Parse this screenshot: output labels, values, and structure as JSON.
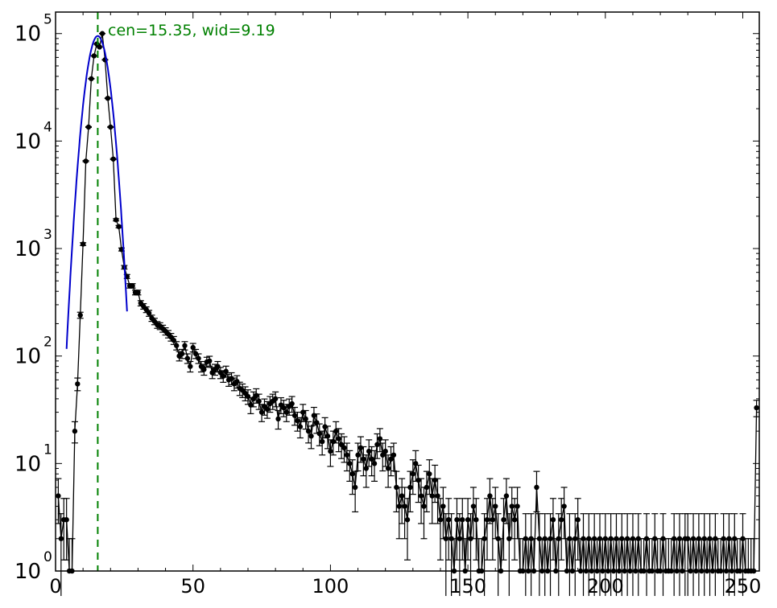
{
  "chart_data": {
    "type": "scatter",
    "title": "",
    "xlabel": "",
    "ylabel": "",
    "xlim": [
      0,
      256
    ],
    "ylim_log10": [
      0,
      5.2
    ],
    "y_scale": "log",
    "grid": false,
    "x_ticks": [
      0,
      50,
      100,
      150,
      200,
      250
    ],
    "x_tick_labels": [
      "0",
      "50",
      "100",
      "150",
      "200",
      "250"
    ],
    "y_ticks": [
      {
        "base": "10",
        "exp": "0",
        "value": 1
      },
      {
        "base": "10",
        "exp": "1",
        "value": 10
      },
      {
        "base": "10",
        "exp": "2",
        "value": 100
      },
      {
        "base": "10",
        "exp": "3",
        "value": 1000
      },
      {
        "base": "10",
        "exp": "4",
        "value": 10000
      },
      {
        "base": "10",
        "exp": "5",
        "value": 100000
      }
    ],
    "annotation": "cen=15.35, wid=9.19",
    "center": 15.35,
    "colors": {
      "data": "#000000",
      "fit": "#0000cc",
      "center_line": "#008000",
      "annotation": "#008000"
    },
    "series": [
      {
        "points": [
          [
            1,
            5
          ],
          [
            2,
            2
          ],
          [
            3,
            3
          ],
          [
            4,
            3
          ],
          [
            5,
            1
          ],
          [
            6,
            1
          ],
          [
            7,
            20
          ],
          [
            8,
            55
          ],
          [
            9,
            240
          ],
          [
            10,
            1100
          ],
          [
            11,
            6500
          ],
          [
            12,
            13500
          ],
          [
            13,
            38000
          ],
          [
            14,
            62000
          ],
          [
            15,
            80000
          ],
          [
            16,
            75000
          ],
          [
            17,
            100000
          ],
          [
            18,
            57000
          ],
          [
            19,
            25000
          ],
          [
            20,
            13500
          ],
          [
            21,
            6800
          ],
          [
            22,
            1850
          ],
          [
            23,
            1600
          ],
          [
            24,
            980
          ],
          [
            25,
            670
          ],
          [
            26,
            550
          ],
          [
            27,
            450
          ],
          [
            28,
            450
          ],
          [
            29,
            390
          ],
          [
            30,
            390
          ],
          [
            31,
            310
          ],
          [
            32,
            290
          ],
          [
            33,
            270
          ],
          [
            34,
            250
          ],
          [
            35,
            225
          ],
          [
            36,
            210
          ],
          [
            37,
            195
          ],
          [
            38,
            190
          ],
          [
            39,
            180
          ],
          [
            40,
            170
          ],
          [
            41,
            160
          ],
          [
            42,
            150
          ],
          [
            43,
            140
          ],
          [
            44,
            125
          ],
          [
            45,
            100
          ],
          [
            46,
            105
          ],
          [
            47,
            125
          ],
          [
            48,
            95
          ],
          [
            49,
            80
          ],
          [
            50,
            120
          ],
          [
            51,
            105
          ],
          [
            52,
            95
          ],
          [
            53,
            80
          ],
          [
            54,
            75
          ],
          [
            55,
            88
          ],
          [
            56,
            90
          ],
          [
            57,
            70
          ],
          [
            58,
            75
          ],
          [
            59,
            80
          ],
          [
            60,
            70
          ],
          [
            61,
            65
          ],
          [
            62,
            72
          ],
          [
            63,
            60
          ],
          [
            64,
            62
          ],
          [
            65,
            55
          ],
          [
            66,
            58
          ],
          [
            67,
            50
          ],
          [
            68,
            48
          ],
          [
            69,
            45
          ],
          [
            70,
            42
          ],
          [
            71,
            35
          ],
          [
            72,
            40
          ],
          [
            73,
            43
          ],
          [
            74,
            38
          ],
          [
            75,
            30
          ],
          [
            76,
            34
          ],
          [
            77,
            32
          ],
          [
            78,
            36
          ],
          [
            79,
            38
          ],
          [
            80,
            40
          ],
          [
            81,
            26
          ],
          [
            82,
            35
          ],
          [
            83,
            33
          ],
          [
            84,
            30
          ],
          [
            85,
            34
          ],
          [
            86,
            36
          ],
          [
            87,
            28
          ],
          [
            88,
            25
          ],
          [
            89,
            22
          ],
          [
            90,
            30
          ],
          [
            91,
            26
          ],
          [
            92,
            20
          ],
          [
            93,
            18
          ],
          [
            94,
            28
          ],
          [
            95,
            24
          ],
          [
            96,
            19
          ],
          [
            97,
            16
          ],
          [
            98,
            22
          ],
          [
            99,
            18
          ],
          [
            100,
            13
          ],
          [
            101,
            16
          ],
          [
            102,
            20
          ],
          [
            103,
            17
          ],
          [
            104,
            15
          ],
          [
            105,
            14
          ],
          [
            106,
            12
          ],
          [
            107,
            10
          ],
          [
            108,
            8
          ],
          [
            109,
            6
          ],
          [
            110,
            12
          ],
          [
            111,
            14
          ],
          [
            112,
            11
          ],
          [
            113,
            9
          ],
          [
            114,
            13
          ],
          [
            115,
            11
          ],
          [
            116,
            10
          ],
          [
            117,
            15
          ],
          [
            118,
            17
          ],
          [
            119,
            12
          ],
          [
            120,
            13
          ],
          [
            121,
            9
          ],
          [
            122,
            11
          ],
          [
            123,
            12
          ],
          [
            124,
            6
          ],
          [
            125,
            4
          ],
          [
            126,
            5
          ],
          [
            127,
            4
          ],
          [
            128,
            3
          ],
          [
            129,
            6
          ],
          [
            130,
            8
          ],
          [
            131,
            10
          ],
          [
            132,
            7
          ],
          [
            133,
            5
          ],
          [
            134,
            4
          ],
          [
            135,
            6
          ],
          [
            136,
            8
          ],
          [
            137,
            5
          ],
          [
            138,
            7
          ],
          [
            139,
            5
          ],
          [
            140,
            3
          ],
          [
            141,
            4
          ],
          [
            142,
            2
          ],
          [
            143,
            3
          ],
          [
            144,
            2
          ],
          [
            145,
            1
          ],
          [
            146,
            3
          ],
          [
            147,
            2
          ],
          [
            148,
            3
          ],
          [
            149,
            1
          ],
          [
            150,
            3
          ],
          [
            151,
            2
          ],
          [
            152,
            4
          ],
          [
            153,
            3
          ],
          [
            154,
            1
          ],
          [
            155,
            1
          ],
          [
            156,
            2
          ],
          [
            157,
            3
          ],
          [
            158,
            5
          ],
          [
            159,
            3
          ],
          [
            160,
            4
          ],
          [
            161,
            2
          ],
          [
            162,
            1
          ],
          [
            163,
            3
          ],
          [
            164,
            5
          ],
          [
            165,
            2
          ],
          [
            166,
            4
          ],
          [
            167,
            3
          ],
          [
            168,
            4
          ],
          [
            169,
            1
          ],
          [
            170,
            1
          ],
          [
            171,
            2
          ],
          [
            172,
            1
          ],
          [
            173,
            2
          ],
          [
            174,
            1
          ],
          [
            175,
            6
          ],
          [
            176,
            2
          ],
          [
            177,
            1
          ],
          [
            178,
            2
          ],
          [
            179,
            1
          ],
          [
            180,
            2
          ],
          [
            181,
            3
          ],
          [
            182,
            1
          ],
          [
            183,
            2
          ],
          [
            184,
            3
          ],
          [
            185,
            4
          ],
          [
            186,
            1
          ],
          [
            187,
            2
          ],
          [
            188,
            1
          ],
          [
            189,
            2
          ],
          [
            190,
            3
          ],
          [
            191,
            1
          ],
          [
            192,
            2
          ],
          [
            193,
            1
          ],
          [
            194,
            2
          ],
          [
            195,
            1
          ],
          [
            196,
            2
          ],
          [
            197,
            1
          ],
          [
            198,
            2
          ],
          [
            199,
            1
          ],
          [
            200,
            2
          ],
          [
            201,
            1
          ],
          [
            202,
            2
          ],
          [
            203,
            1
          ],
          [
            204,
            2
          ],
          [
            205,
            1
          ],
          [
            206,
            2
          ],
          [
            207,
            1
          ],
          [
            208,
            2
          ],
          [
            209,
            1
          ],
          [
            210,
            2
          ],
          [
            211,
            1
          ],
          [
            212,
            2
          ],
          [
            213,
            1
          ],
          [
            214,
            1
          ],
          [
            215,
            2
          ],
          [
            216,
            1
          ],
          [
            217,
            1
          ],
          [
            218,
            2
          ],
          [
            219,
            1
          ],
          [
            220,
            1
          ],
          [
            221,
            2
          ],
          [
            222,
            1
          ],
          [
            223,
            1
          ],
          [
            224,
            1
          ],
          [
            225,
            2
          ],
          [
            226,
            1
          ],
          [
            227,
            2
          ],
          [
            228,
            1
          ],
          [
            229,
            2
          ],
          [
            230,
            2
          ],
          [
            231,
            1
          ],
          [
            232,
            2
          ],
          [
            233,
            1
          ],
          [
            234,
            2
          ],
          [
            235,
            1
          ],
          [
            236,
            2
          ],
          [
            237,
            1
          ],
          [
            238,
            2
          ],
          [
            239,
            1
          ],
          [
            240,
            2
          ],
          [
            241,
            1
          ],
          [
            242,
            1
          ],
          [
            243,
            2
          ],
          [
            244,
            1
          ],
          [
            245,
            2
          ],
          [
            246,
            1
          ],
          [
            247,
            2
          ],
          [
            248,
            1
          ],
          [
            249,
            1
          ],
          [
            250,
            2
          ],
          [
            251,
            1
          ],
          [
            252,
            1
          ],
          [
            253,
            1
          ],
          [
            254,
            1
          ],
          [
            255,
            33
          ]
        ]
      }
    ],
    "fit": {
      "center": 15.35,
      "amplitude": 95000,
      "sigma": 3.1,
      "x_range": [
        4,
        26
      ]
    }
  }
}
